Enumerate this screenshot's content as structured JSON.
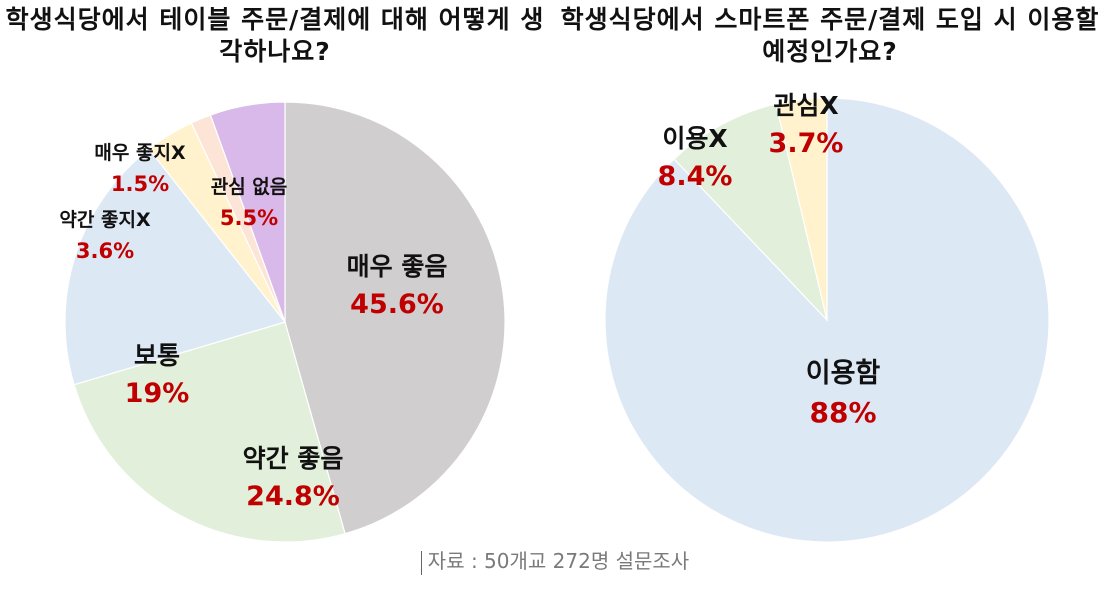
{
  "colors": {
    "percent_text": "#c00000",
    "label_text": "#111111",
    "source_text": "#7a7a7a"
  },
  "chart_data": [
    {
      "type": "pie",
      "title": "학생식당에서 테이블 주문/결제에 대해 어떻게 생각하나요?",
      "slices": [
        {
          "label": "매우 좋음",
          "value": 45.6,
          "display": "45.6%",
          "color": "#d0cece"
        },
        {
          "label": "약간 좋음",
          "value": 24.8,
          "display": "24.8%",
          "color": "#e2efda"
        },
        {
          "label": "보통",
          "value": 19,
          "display": "19%",
          "color": "#dde8f5"
        },
        {
          "label": "약간 좋지X",
          "value": 3.6,
          "display": "3.6%",
          "color": "#fff2cc"
        },
        {
          "label": "매우 좋지X",
          "value": 1.5,
          "display": "1.5%",
          "color": "#fce4d6"
        },
        {
          "label": "관심 없음",
          "value": 5.5,
          "display": "5.5%",
          "color": "#d9b8ea"
        }
      ]
    },
    {
      "type": "pie",
      "title": "학생식당에서 스마트폰 주문/결제 도입 시 이용할 예정인가요?",
      "slices": [
        {
          "label": "이용함",
          "value": 88,
          "display": "88%",
          "color": "#dde8f5"
        },
        {
          "label": "이용X",
          "value": 8.4,
          "display": "8.4%",
          "color": "#e2efda"
        },
        {
          "label": "관심X",
          "value": 3.7,
          "display": "3.7%",
          "color": "#fff2cc"
        }
      ]
    }
  ],
  "source": "자료 : 50개교 272명 설문조사"
}
